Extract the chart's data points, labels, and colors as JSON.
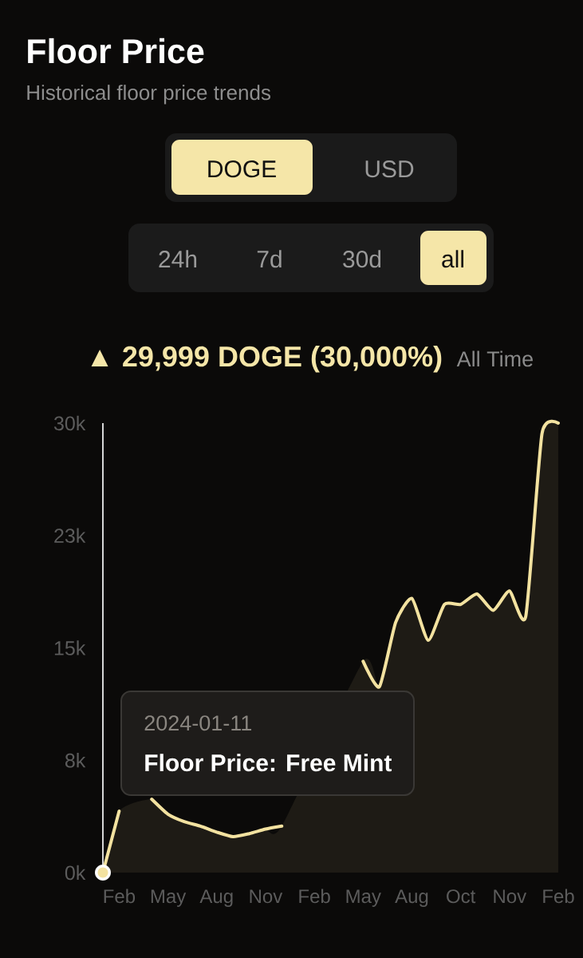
{
  "chart_data": {
    "type": "area",
    "title": "Floor Price",
    "subtitle": "Historical floor price trends",
    "annotations": [
      "DOGE",
      "USD",
      "24h",
      "7d",
      "30d",
      "all",
      "▲ 29,999 DOGE (30,000%)",
      "All Time",
      "2024-01-11",
      "Floor Price: Free Mint"
    ],
    "categories": [
      null,
      "Feb",
      null,
      null,
      "May",
      null,
      null,
      "Aug",
      null,
      null,
      "Nov",
      null,
      null,
      "Feb",
      null,
      null,
      "May",
      null,
      null,
      "Aug",
      null,
      null,
      "Oct",
      null,
      null,
      "Nov",
      null,
      null,
      "Feb"
    ],
    "values": [
      0,
      4100,
      null,
      4900,
      3900,
      3400,
      3100,
      2700,
      2400,
      2600,
      2900,
      3100,
      null,
      null,
      null,
      null,
      14100,
      12400,
      16700,
      18300,
      15500,
      17900,
      17900,
      18600,
      17500,
      18800,
      17100,
      29300,
      30000
    ],
    "color": "#f3e2a0",
    "ylim": [
      0,
      30000
    ],
    "yticks": [
      {
        "value": 0,
        "label": "0k"
      },
      {
        "value": 7500,
        "label": "8k"
      },
      {
        "value": 15000,
        "label": "15k"
      },
      {
        "value": 22500,
        "label": "23k"
      },
      {
        "value": 30000,
        "label": "30k"
      }
    ],
    "marker": "none",
    "line_style": "solid"
  }
}
